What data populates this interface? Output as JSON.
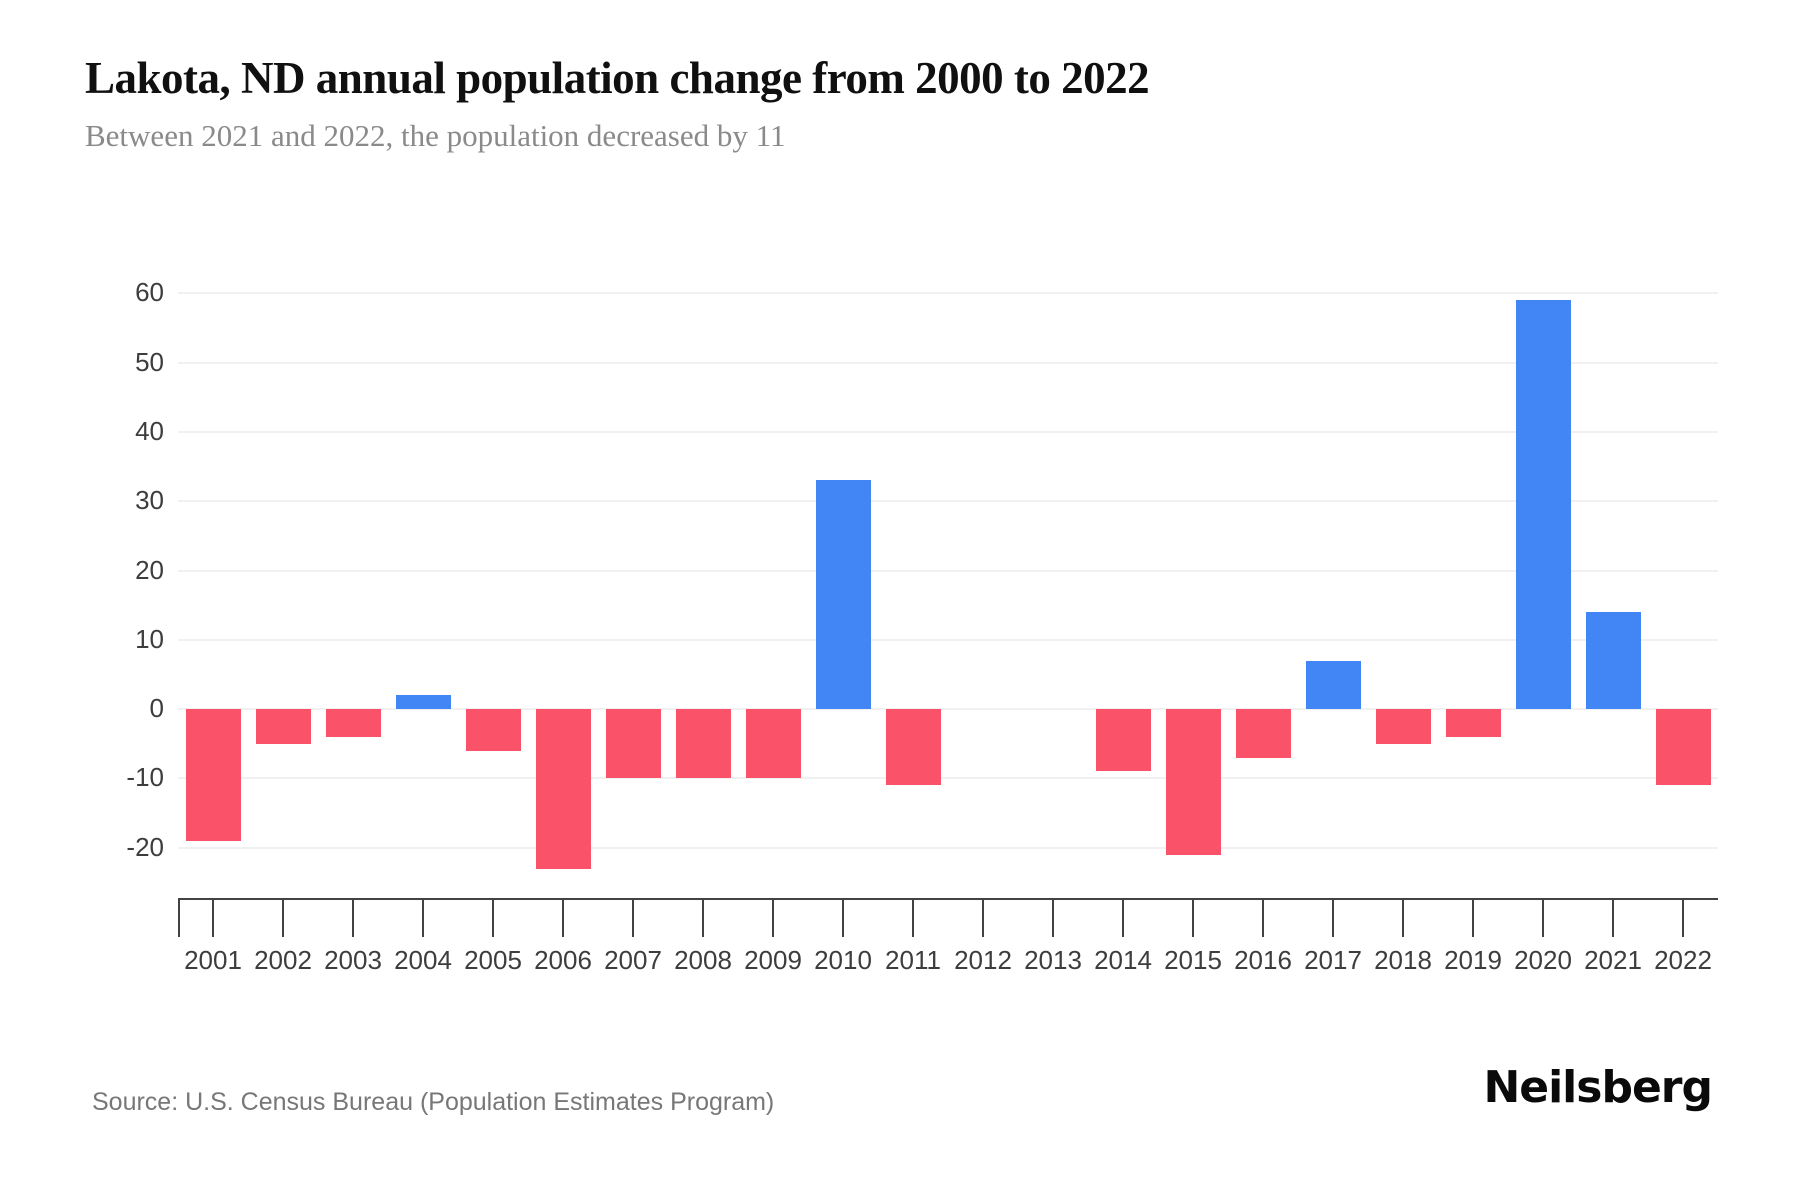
{
  "header": {
    "title": "Lakota, ND annual population change from 2000 to 2022",
    "subtitle": "Between 2021 and 2022, the population decreased by 11"
  },
  "chart_data": {
    "type": "bar",
    "title": "Lakota, ND annual population change from 2000 to 2022",
    "categories": [
      "2001",
      "2002",
      "2003",
      "2004",
      "2005",
      "2006",
      "2007",
      "2008",
      "2009",
      "2010",
      "2011",
      "2012",
      "2013",
      "2014",
      "2015",
      "2016",
      "2017",
      "2018",
      "2019",
      "2020",
      "2021",
      "2022"
    ],
    "values": [
      -19,
      -5,
      -4,
      2,
      -6,
      -23,
      -10,
      -10,
      -10,
      33,
      -11,
      0,
      0,
      -9,
      -21,
      -7,
      7,
      -5,
      -4,
      59,
      14,
      -11
    ],
    "xlabel": "",
    "ylabel": "",
    "ylim": [
      -27.4,
      67.7
    ],
    "yticks": [
      60,
      50,
      40,
      30,
      20,
      10,
      0,
      -10,
      -20
    ],
    "grid": true,
    "legend": false,
    "colors": {
      "positive_bar": "#4285f4",
      "negative_bar": "#fa5269",
      "gridline": "#f1f1f1",
      "axis": "#424242",
      "tick_label": "#3d3d3d"
    }
  },
  "footer": {
    "source": "Source: U.S. Census Bureau (Population Estimates Program)",
    "brand": "Neilsberg"
  }
}
